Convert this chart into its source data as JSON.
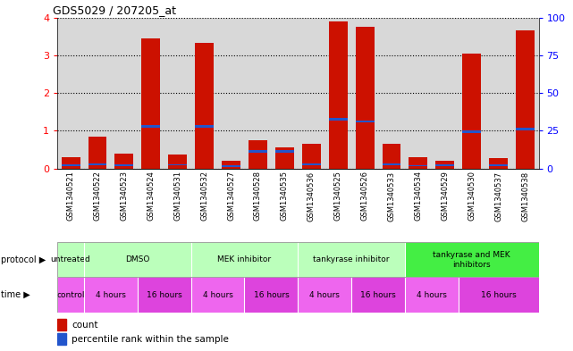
{
  "title": "GDS5029 / 207205_at",
  "samples": [
    "GSM1340521",
    "GSM1340522",
    "GSM1340523",
    "GSM1340524",
    "GSM1340531",
    "GSM1340532",
    "GSM1340527",
    "GSM1340528",
    "GSM1340535",
    "GSM1340536",
    "GSM1340525",
    "GSM1340526",
    "GSM1340533",
    "GSM1340534",
    "GSM1340529",
    "GSM1340530",
    "GSM1340537",
    "GSM1340538"
  ],
  "count_values": [
    0.3,
    0.85,
    0.4,
    3.45,
    0.36,
    3.32,
    0.2,
    0.75,
    0.55,
    0.65,
    3.9,
    3.75,
    0.65,
    0.3,
    0.2,
    3.05,
    0.28,
    3.65
  ],
  "blue_bottom": [
    0.06,
    0.09,
    0.07,
    1.08,
    0.08,
    1.08,
    0.05,
    0.42,
    0.42,
    0.09,
    1.27,
    1.22,
    0.09,
    0.06,
    0.07,
    0.95,
    0.07,
    1.02
  ],
  "blue_height": [
    0.04,
    0.04,
    0.04,
    0.06,
    0.04,
    0.06,
    0.03,
    0.06,
    0.06,
    0.04,
    0.07,
    0.06,
    0.04,
    0.03,
    0.04,
    0.06,
    0.04,
    0.06
  ],
  "ylim": [
    0,
    4
  ],
  "yticks": [
    0,
    1,
    2,
    3,
    4
  ],
  "y2ticks": [
    0,
    25,
    50,
    75,
    100
  ],
  "bar_color": "#cc1100",
  "blue_color": "#2255cc",
  "bg_color": "#d8d8d8",
  "proto_configs": [
    {
      "label": "untreated",
      "start": 0,
      "end": 1,
      "color": "#bbffbb"
    },
    {
      "label": "DMSO",
      "start": 1,
      "end": 5,
      "color": "#bbffbb"
    },
    {
      "label": "MEK inhibitor",
      "start": 5,
      "end": 9,
      "color": "#bbffbb"
    },
    {
      "label": "tankyrase inhibitor",
      "start": 9,
      "end": 13,
      "color": "#bbffbb"
    },
    {
      "label": "tankyrase and MEK\ninhibitors",
      "start": 13,
      "end": 18,
      "color": "#44ee44"
    }
  ],
  "time_configs": [
    {
      "label": "control",
      "start": 0,
      "end": 1,
      "color": "#ee66ee"
    },
    {
      "label": "4 hours",
      "start": 1,
      "end": 3,
      "color": "#ee66ee"
    },
    {
      "label": "16 hours",
      "start": 3,
      "end": 5,
      "color": "#dd44dd"
    },
    {
      "label": "4 hours",
      "start": 5,
      "end": 7,
      "color": "#ee66ee"
    },
    {
      "label": "16 hours",
      "start": 7,
      "end": 9,
      "color": "#dd44dd"
    },
    {
      "label": "4 hours",
      "start": 9,
      "end": 11,
      "color": "#ee66ee"
    },
    {
      "label": "16 hours",
      "start": 11,
      "end": 13,
      "color": "#dd44dd"
    },
    {
      "label": "4 hours",
      "start": 13,
      "end": 15,
      "color": "#ee66ee"
    },
    {
      "label": "16 hours",
      "start": 15,
      "end": 18,
      "color": "#dd44dd"
    }
  ],
  "proto_separators": [
    1,
    5,
    9,
    13
  ],
  "time_separators": [
    1,
    3,
    5,
    7,
    9,
    11,
    13,
    15
  ]
}
